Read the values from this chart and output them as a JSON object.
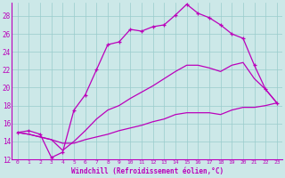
{
  "xlabel": "Windchill (Refroidissement éolien,°C)",
  "bg_color": "#cce8e8",
  "line_color": "#bb00bb",
  "xlim_min": -0.5,
  "xlim_max": 23.5,
  "ylim_min": 12,
  "ylim_max": 29.5,
  "xticks": [
    0,
    1,
    2,
    3,
    4,
    5,
    6,
    7,
    8,
    9,
    10,
    11,
    12,
    13,
    14,
    15,
    16,
    17,
    18,
    19,
    20,
    21,
    22,
    23
  ],
  "yticks": [
    12,
    14,
    16,
    18,
    20,
    22,
    24,
    26,
    28
  ],
  "grid_color": "#99cccc",
  "line1_x": [
    0,
    1,
    2,
    3,
    4,
    5,
    6,
    7,
    8,
    9,
    10,
    11,
    12,
    13,
    14,
    15,
    16,
    17,
    18,
    19,
    20,
    21,
    22,
    23
  ],
  "line1_y": [
    15.0,
    15.2,
    14.8,
    12.2,
    12.8,
    17.5,
    19.2,
    22.0,
    24.8,
    25.1,
    26.5,
    26.3,
    26.8,
    27.0,
    28.1,
    29.3,
    28.3,
    27.8,
    27.0,
    26.0,
    25.5,
    22.5,
    19.8,
    18.3
  ],
  "line2_x": [
    0,
    1,
    2,
    3,
    4,
    5,
    6,
    7,
    8,
    9,
    10,
    11,
    12,
    13,
    14,
    15,
    16,
    17,
    18,
    19,
    20,
    21,
    22,
    23
  ],
  "line2_y": [
    15.0,
    14.8,
    14.5,
    14.2,
    13.0,
    14.0,
    15.2,
    16.5,
    17.5,
    18.0,
    18.8,
    19.5,
    20.2,
    21.0,
    21.8,
    22.5,
    22.5,
    22.2,
    21.8,
    22.5,
    22.8,
    21.0,
    19.8,
    18.3
  ],
  "line3_x": [
    0,
    1,
    2,
    3,
    4,
    5,
    6,
    7,
    8,
    9,
    10,
    11,
    12,
    13,
    14,
    15,
    16,
    17,
    18,
    19,
    20,
    21,
    22,
    23
  ],
  "line3_y": [
    15.0,
    14.8,
    14.5,
    14.2,
    13.8,
    13.8,
    14.2,
    14.5,
    14.8,
    15.2,
    15.5,
    15.8,
    16.2,
    16.5,
    17.0,
    17.2,
    17.2,
    17.2,
    17.0,
    17.5,
    17.8,
    17.8,
    18.0,
    18.3
  ]
}
